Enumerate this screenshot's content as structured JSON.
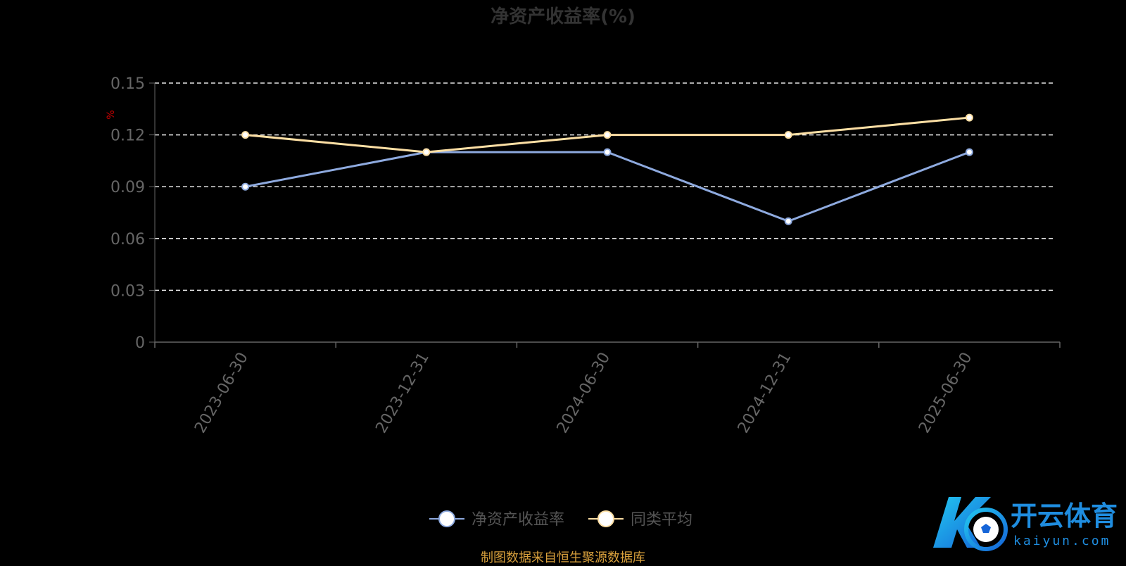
{
  "chart_data": {
    "type": "line",
    "title": "净资产收益率(%)",
    "unit_label": "%",
    "categories": [
      "2023-06-30",
      "2023-12-31",
      "2024-06-30",
      "2024-12-31",
      "2025-06-30"
    ],
    "series": [
      {
        "name": "净资产收益率",
        "values": [
          0.09,
          0.11,
          0.11,
          0.07,
          0.11
        ],
        "color": "#8eaadf"
      },
      {
        "name": "同类平均",
        "values": [
          0.12,
          0.11,
          0.12,
          0.12,
          0.13
        ],
        "color": "#fddfa4"
      }
    ],
    "y_ticks": [
      "0",
      "0.03",
      "0.06",
      "0.09",
      "0.12",
      "0.15"
    ],
    "ylim": [
      0,
      0.15
    ],
    "grid": true,
    "legend_position": "bottom"
  },
  "source_text": "制图数据来自恒生聚源数据库",
  "logo": {
    "name": "开云体育",
    "domain": "kaiyun.com"
  }
}
